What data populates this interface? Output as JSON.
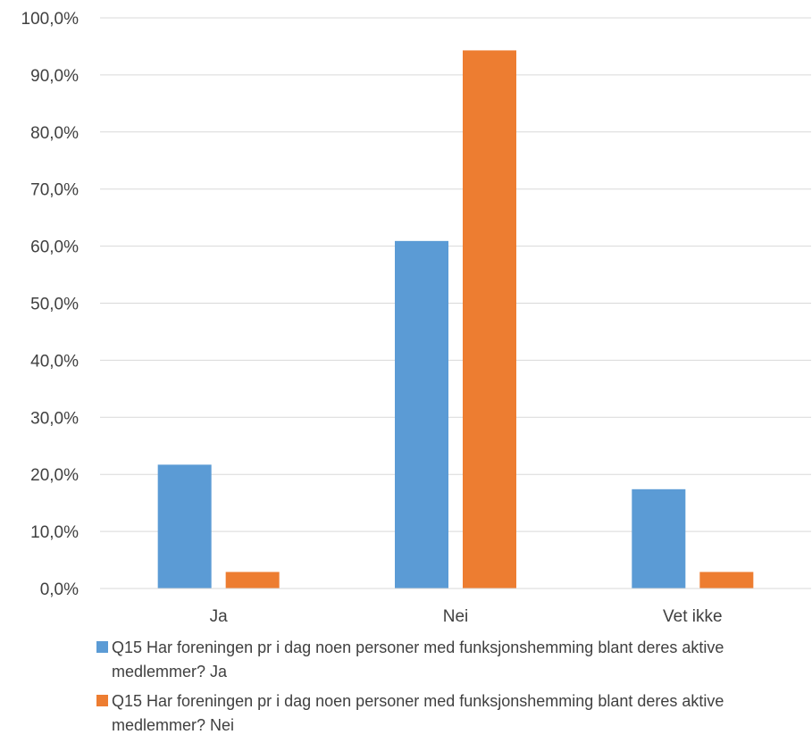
{
  "chart_data": {
    "type": "bar",
    "categories": [
      "Ja",
      "Nei",
      "Vet ikke"
    ],
    "series": [
      {
        "name": "Q15 Har foreningen pr i dag noen personer med funksjonshemming blant deres aktive medlemmer? Ja",
        "values": [
          21.7,
          60.9,
          17.4
        ],
        "color": "#5B9BD5"
      },
      {
        "name": "Q15 Har foreningen pr i dag noen personer med funksjonshemming blant deres aktive medlemmer? Nei",
        "values": [
          2.9,
          94.3,
          2.9
        ],
        "color": "#ED7D31"
      }
    ],
    "ylim": [
      0,
      100
    ],
    "yticks": [
      "0,0%",
      "10,0%",
      "20,0%",
      "30,0%",
      "40,0%",
      "50,0%",
      "60,0%",
      "70,0%",
      "80,0%",
      "90,0%",
      "100,0%"
    ],
    "grid": true,
    "legend_position": "bottom",
    "title": "",
    "xlabel": "",
    "ylabel": ""
  }
}
